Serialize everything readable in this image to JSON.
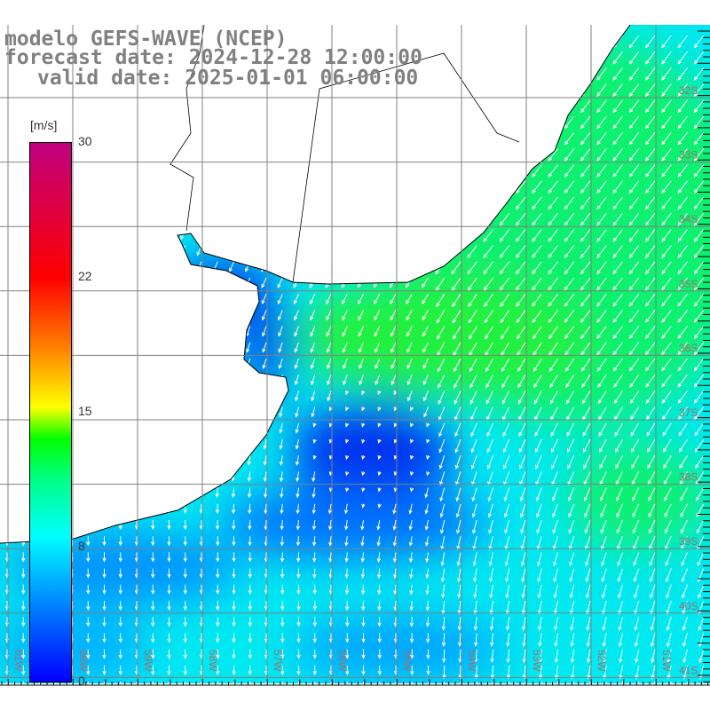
{
  "title": {
    "line1": "modelo GEFS-WAVE (NCEP)",
    "line2": "forecast date: 2024-12-28 12:00:00",
    "line3": "valid date: 2025-01-01 06:00:00"
  },
  "colorbar": {
    "unit": "[m/s]",
    "ticks": [
      "30",
      "22",
      "15",
      "8",
      "0"
    ]
  },
  "lat_labels": [
    "32S",
    "33S",
    "34S",
    "35S",
    "36S",
    "37S",
    "38S",
    "39S",
    "40S",
    "41S"
  ],
  "lon_labels": [
    "61W",
    "60W",
    "59W",
    "58W",
    "57W",
    "56W",
    "55W",
    "54W",
    "53W",
    "52W",
    "51W"
  ],
  "colors": {
    "land": "#ffffff",
    "grid": "#808080",
    "label": "#a07070",
    "arrow": "#ffffff"
  }
}
